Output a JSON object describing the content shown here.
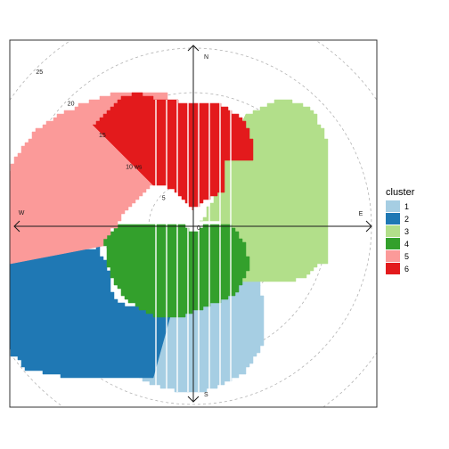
{
  "chart_data": {
    "type": "polar-cluster-map",
    "title": "",
    "xlabel": "",
    "ylabel": "",
    "directions": [
      {
        "label": "N",
        "angle": 0
      },
      {
        "label": "E",
        "angle": 90
      },
      {
        "label": "S",
        "angle": 180
      },
      {
        "label": "W",
        "angle": 270
      }
    ],
    "radial_ticks": [
      {
        "value": 5,
        "label": "5"
      },
      {
        "value": 10,
        "label": "10 ws"
      },
      {
        "value": 15,
        "label": "15"
      },
      {
        "value": 20,
        "label": "20"
      },
      {
        "value": 25,
        "label": "25"
      }
    ],
    "center_label": "0",
    "grid": true,
    "legend": {
      "title": "cluster",
      "placement": "right",
      "entries": [
        {
          "label": "1",
          "color": "#a6cee3"
        },
        {
          "label": "2",
          "color": "#1f78b4"
        },
        {
          "label": "3",
          "color": "#b2df8a"
        },
        {
          "label": "4",
          "color": "#33a02c"
        },
        {
          "label": "5",
          "color": "#fb9a99"
        },
        {
          "label": "6",
          "color": "#e31a1c"
        }
      ]
    },
    "clusters": [
      {
        "label": "1",
        "color": "#a6cee3",
        "outer": [
          [
            115,
            7.5
          ],
          [
            130,
            8.8
          ],
          [
            140,
            12.5
          ],
          [
            150,
            15.5
          ],
          [
            160,
            17.5
          ],
          [
            175,
            18.5
          ],
          [
            190,
            18.5
          ],
          [
            200,
            17.8
          ],
          [
            210,
            16
          ]
        ],
        "inner": [
          [
            210,
            9.5
          ],
          [
            190,
            6
          ],
          [
            170,
            6
          ],
          [
            150,
            7
          ],
          [
            130,
            7
          ],
          [
            115,
            7.5
          ]
        ]
      },
      {
        "label": "2",
        "color": "#1f78b4",
        "outer": [
          [
            195,
            17.5
          ],
          [
            210,
            19.5
          ],
          [
            220,
            22
          ],
          [
            230,
            24.5
          ],
          [
            245,
            25
          ],
          [
            255,
            24
          ],
          [
            262,
            20
          ]
        ],
        "inner": [
          [
            262,
            11.2
          ],
          [
            245,
            10.5
          ],
          [
            225,
            12.3
          ],
          [
            210,
            10
          ],
          [
            195,
            10
          ]
        ]
      },
      {
        "label": "3",
        "color": "#b2df8a",
        "outer": [
          [
            25,
            14
          ],
          [
            35,
            17.5
          ],
          [
            45,
            18.5
          ],
          [
            60,
            17.5
          ],
          [
            75,
            15.5
          ],
          [
            90,
            15
          ],
          [
            105,
            15.5
          ],
          [
            118,
            13
          ]
        ],
        "inner": [
          [
            118,
            6
          ],
          [
            100,
            4
          ],
          [
            80,
            3
          ],
          [
            60,
            1
          ],
          [
            35,
            3
          ],
          [
            25,
            8
          ]
        ]
      },
      {
        "label": "4",
        "color": "#33a02c",
        "outer": [
          [
            85,
            4
          ],
          [
            100,
            5
          ],
          [
            115,
            6.5
          ],
          [
            130,
            8
          ],
          [
            150,
            9
          ],
          [
            170,
            9
          ],
          [
            190,
            10.5
          ],
          [
            210,
            11
          ],
          [
            225,
            11
          ],
          [
            245,
            10.5
          ],
          [
            262,
            10
          ],
          [
            272,
            8.5
          ]
        ],
        "inner": [
          [
            272,
            1
          ],
          [
            240,
            0.6
          ],
          [
            200,
            0.5
          ],
          [
            160,
            0.5
          ],
          [
            120,
            0.7
          ],
          [
            85,
            1.2
          ]
        ]
      },
      {
        "label": "5",
        "color": "#fb9a99",
        "outer": [
          [
            258,
            21
          ],
          [
            270,
            21.5
          ],
          [
            285,
            22
          ],
          [
            300,
            21
          ],
          [
            315,
            19
          ],
          [
            332,
            17
          ]
        ],
        "inner": [
          [
            332,
            6
          ],
          [
            315,
            6.5
          ],
          [
            300,
            6.8
          ],
          [
            285,
            7.5
          ],
          [
            270,
            8.5
          ],
          [
            258,
            10.5
          ]
        ]
      },
      {
        "label": "6",
        "color": "#e31a1c",
        "outer": [
          [
            315,
            16
          ],
          [
            325,
            16.5
          ],
          [
            335,
            16.5
          ],
          [
            345,
            14.5
          ],
          [
            355,
            14
          ],
          [
            5,
            14
          ],
          [
            15,
            13.8
          ],
          [
            25,
            13
          ],
          [
            35,
            11.5
          ],
          [
            42,
            10
          ]
        ],
        "inner": [
          [
            42,
            5
          ],
          [
            30,
            3.5
          ],
          [
            15,
            2.5
          ],
          [
            0,
            2
          ],
          [
            345,
            3
          ],
          [
            330,
            5
          ],
          [
            315,
            6.5
          ]
        ]
      }
    ],
    "calm_stripes": {
      "angle_range": [
        355,
        5
      ],
      "count": 8
    }
  }
}
